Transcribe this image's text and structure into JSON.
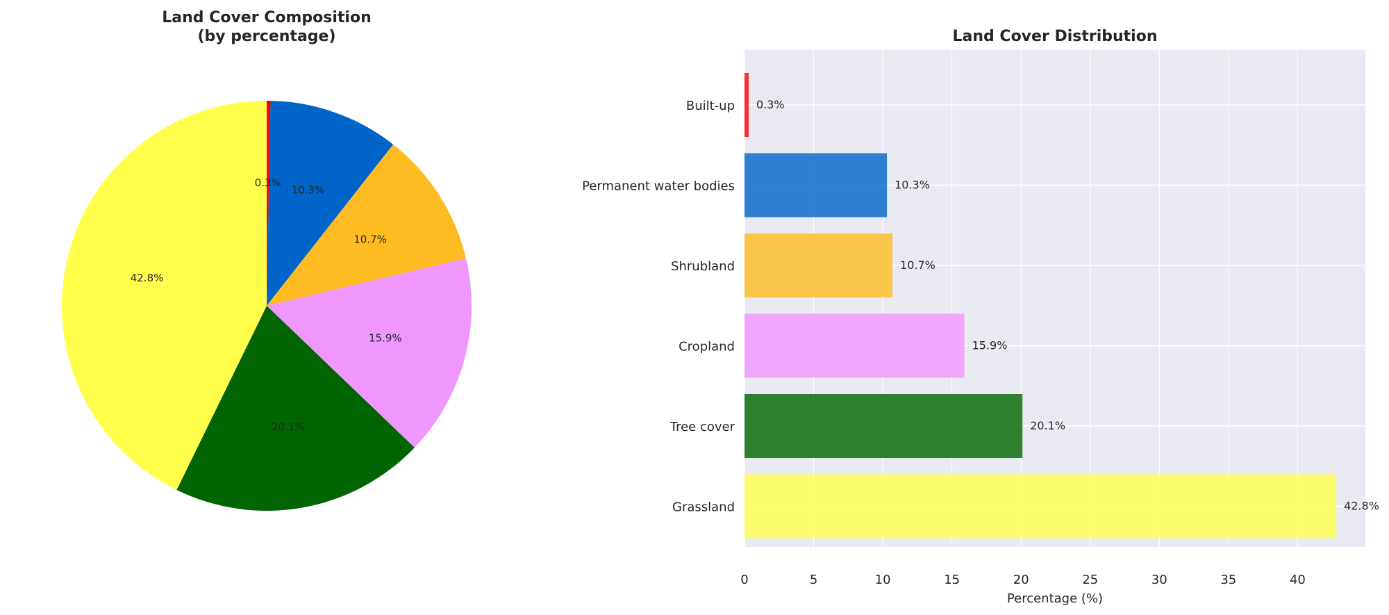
{
  "chart_data": [
    {
      "type": "pie",
      "title": "Land Cover Composition\n(by percentage)",
      "title_lines": [
        "Land Cover Composition",
        "(by percentage)"
      ],
      "labels": [
        "Built-up",
        "Permanent water bodies",
        "Shrubland",
        "Cropland",
        "Tree cover",
        "Grassland"
      ],
      "values": [
        0.3,
        10.3,
        10.7,
        15.9,
        20.1,
        42.8
      ],
      "value_labels": [
        "0.3%",
        "10.3%",
        "10.7%",
        "15.9%",
        "20.1%",
        "42.8%"
      ],
      "colors": [
        "#ff0000",
        "#0064c8",
        "#ffbb22",
        "#f096ff",
        "#006400",
        "#ffff4c"
      ],
      "start_angle_deg": 90,
      "direction": "clockwise"
    },
    {
      "type": "bar",
      "orientation": "horizontal",
      "title": "Land Cover Distribution",
      "categories": [
        "Built-up",
        "Permanent water bodies",
        "Shrubland",
        "Cropland",
        "Tree cover",
        "Grassland"
      ],
      "values": [
        0.3,
        10.3,
        10.7,
        15.9,
        20.1,
        42.8
      ],
      "value_labels": [
        "0.3%",
        "10.3%",
        "10.7%",
        "15.9%",
        "20.1%",
        "42.8%"
      ],
      "colors": [
        "#ff0000",
        "#0064c8",
        "#ffbb22",
        "#f096ff",
        "#006400",
        "#ffff4c"
      ],
      "xlabel": "Percentage (%)",
      "ylabel": "",
      "xlim": [
        0,
        44.9
      ],
      "xticks": [
        0,
        5,
        10,
        15,
        20,
        25,
        30,
        35,
        40
      ],
      "xtick_labels": [
        "0",
        "5",
        "10",
        "15",
        "20",
        "25",
        "30",
        "35",
        "40"
      ],
      "grid": true,
      "background": "#eaeaf2"
    }
  ]
}
